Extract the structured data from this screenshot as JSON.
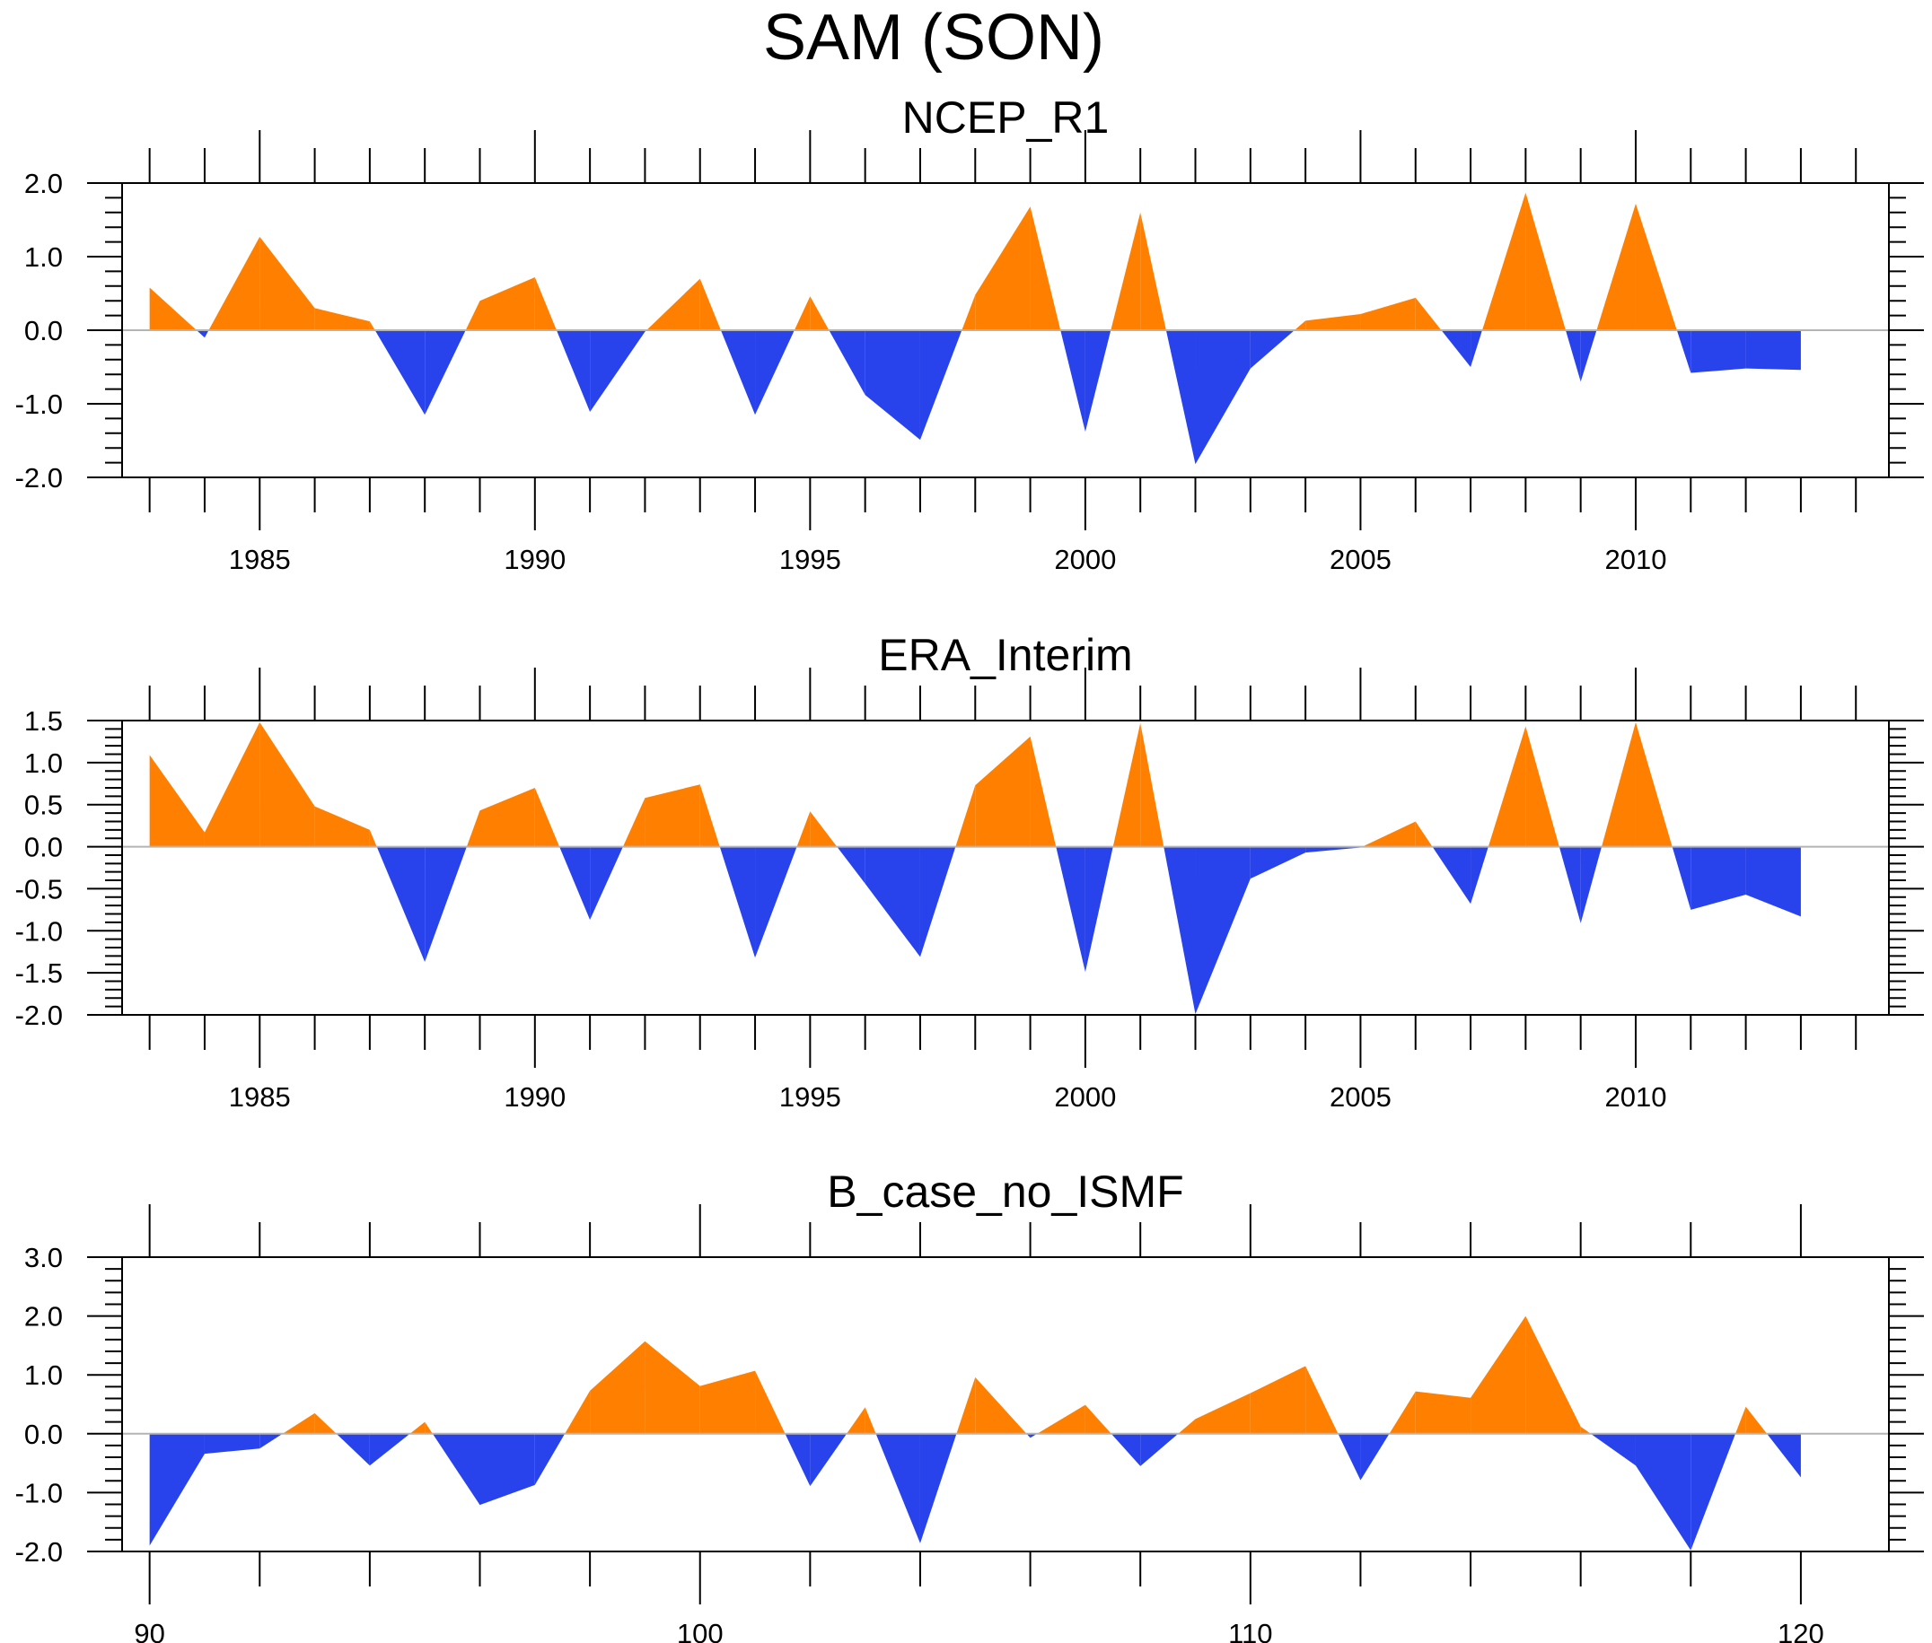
{
  "title": "SAM (SON)",
  "colors": {
    "positive": "#FF8000",
    "negative": "#2843EB",
    "axis": "#000000",
    "zero_line": "#B4B4B4"
  },
  "chart_data": [
    {
      "type": "area",
      "title": "NCEP_R1",
      "xlabel": "",
      "ylabel": "",
      "x": [
        1983,
        1984,
        1985,
        1986,
        1987,
        1988,
        1989,
        1990,
        1991,
        1992,
        1993,
        1994,
        1995,
        1996,
        1997,
        1998,
        1999,
        2000,
        2001,
        2002,
        2003,
        2004,
        2005,
        2006,
        2007,
        2008,
        2009,
        2010,
        2011,
        2012,
        2013
      ],
      "values": [
        0.58,
        -0.1,
        1.27,
        0.3,
        0.12,
        -1.15,
        0.4,
        0.72,
        -1.11,
        -0.02,
        0.7,
        -1.15,
        0.46,
        -0.88,
        -1.49,
        0.48,
        1.68,
        -1.38,
        1.6,
        -1.82,
        -0.52,
        0.13,
        0.22,
        0.44,
        -0.5,
        1.87,
        -0.7,
        1.72,
        -0.58,
        -0.52,
        -0.54
      ],
      "xlim": [
        1982.5,
        2014.6
      ],
      "ylim": [
        -2.0,
        2.0
      ],
      "y_major_ticks": [
        -2.0,
        -1.0,
        0.0,
        1.0,
        2.0
      ],
      "y_tick_labels": [
        "-2.0",
        "-1.0",
        "0.0",
        "1.0",
        "2.0"
      ],
      "y_minor_step": 0.2,
      "x_major_ticks": [
        1985,
        1990,
        1995,
        2000,
        2005,
        2010
      ],
      "x_tick_labels": [
        "1985",
        "1990",
        "1995",
        "2000",
        "2005",
        "2010"
      ],
      "x_minor_step": 1,
      "fill_above_zero": "orange",
      "fill_below_zero": "blue",
      "grid": false
    },
    {
      "type": "area",
      "title": "ERA_Interim",
      "xlabel": "",
      "ylabel": "",
      "x": [
        1983,
        1984,
        1985,
        1986,
        1987,
        1988,
        1989,
        1990,
        1991,
        1992,
        1993,
        1994,
        1995,
        1996,
        1997,
        1998,
        1999,
        2000,
        2001,
        2002,
        2003,
        2004,
        2005,
        2006,
        2007,
        2008,
        2009,
        2010,
        2011,
        2012,
        2013
      ],
      "values": [
        1.09,
        0.17,
        1.48,
        0.48,
        0.2,
        -1.37,
        0.43,
        0.7,
        -0.87,
        0.58,
        0.74,
        -1.32,
        0.42,
        -0.44,
        -1.31,
        0.73,
        1.31,
        -1.49,
        1.47,
        -1.99,
        -0.38,
        -0.07,
        -0.01,
        0.3,
        -0.68,
        1.43,
        -0.91,
        1.48,
        -0.75,
        -0.57,
        -0.83
      ],
      "xlim": [
        1982.5,
        2014.6
      ],
      "ylim": [
        -2.0,
        1.5
      ],
      "y_major_ticks": [
        -2.0,
        -1.5,
        -1.0,
        -0.5,
        0.0,
        0.5,
        1.0,
        1.5
      ],
      "y_tick_labels": [
        "-2.0",
        "-1.5",
        "-1.0",
        "-0.5",
        "0.0",
        "0.5",
        "1.0",
        "1.5"
      ],
      "y_minor_step": 0.1,
      "x_major_ticks": [
        1985,
        1990,
        1995,
        2000,
        2005,
        2010
      ],
      "x_tick_labels": [
        "1985",
        "1990",
        "1995",
        "2000",
        "2005",
        "2010"
      ],
      "x_minor_step": 1,
      "fill_above_zero": "orange",
      "fill_below_zero": "blue",
      "grid": false
    },
    {
      "type": "area",
      "title": "B_case_no_ISMF",
      "xlabel": "",
      "ylabel": "",
      "x": [
        90,
        91,
        92,
        93,
        94,
        95,
        96,
        97,
        98,
        99,
        100,
        101,
        102,
        103,
        104,
        105,
        106,
        107,
        108,
        109,
        110,
        111,
        112,
        113,
        114,
        115,
        116,
        117,
        118,
        119,
        120
      ],
      "values": [
        -1.9,
        -0.34,
        -0.25,
        0.35,
        -0.54,
        0.2,
        -1.21,
        -0.87,
        0.73,
        1.57,
        0.81,
        1.07,
        -0.89,
        0.45,
        -1.86,
        0.96,
        -0.07,
        0.49,
        -0.55,
        0.25,
        0.69,
        1.15,
        -0.79,
        0.72,
        0.61,
        2.0,
        0.12,
        -0.54,
        -1.98,
        0.46,
        -0.74
      ],
      "xlim": [
        89.5,
        121.6
      ],
      "ylim": [
        -2.0,
        3.0
      ],
      "y_major_ticks": [
        -2.0,
        -1.0,
        0.0,
        1.0,
        2.0,
        3.0
      ],
      "y_tick_labels": [
        "-2.0",
        "-1.0",
        "0.0",
        "1.0",
        "2.0",
        "3.0"
      ],
      "y_minor_step": 0.2,
      "x_major_ticks": [
        90,
        100,
        110,
        120
      ],
      "x_tick_labels": [
        "90",
        "100",
        "110",
        "120"
      ],
      "x_minor_step": 2,
      "fill_above_zero": "orange",
      "fill_below_zero": "blue",
      "grid": false
    }
  ]
}
